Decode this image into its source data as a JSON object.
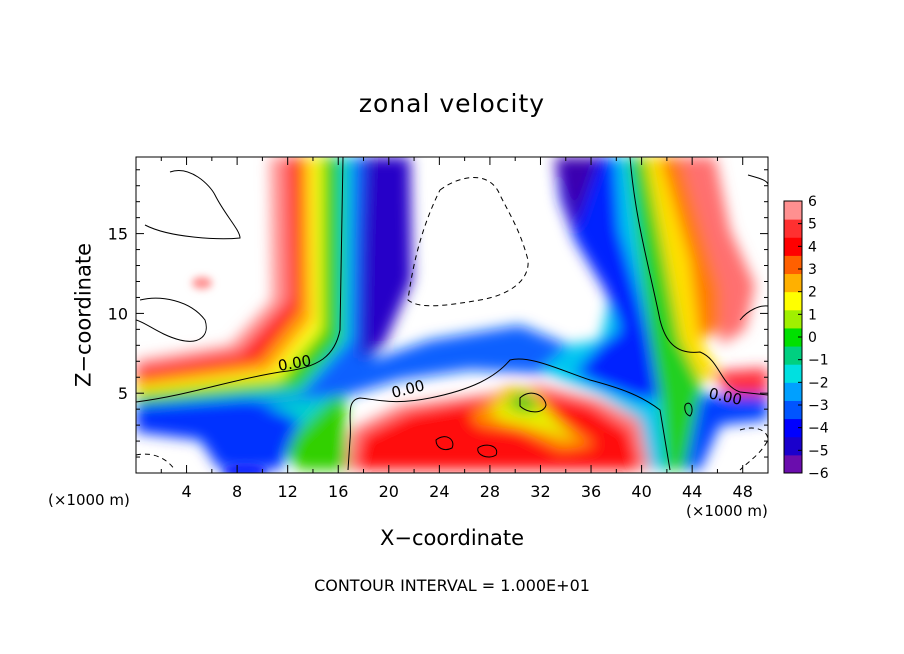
{
  "chart_data": {
    "type": "heatmap",
    "title": "zonal velocity",
    "xlabel": "X−coordinate",
    "ylabel": "Z−coordinate",
    "x_unit_label": "(×1000 m)",
    "xlim": [
      0,
      50
    ],
    "ylim": [
      0,
      19.8
    ],
    "x_ticks": [
      4,
      8,
      12,
      16,
      20,
      24,
      28,
      32,
      36,
      40,
      44,
      48
    ],
    "x_tick_labels": [
      "4",
      "8",
      "12",
      "16",
      "20",
      "24",
      "28",
      "32",
      "36",
      "40",
      "44",
      "48"
    ],
    "y_ticks": [
      5,
      10,
      15
    ],
    "y_tick_labels": [
      "5",
      "10",
      "15"
    ],
    "colorbar": {
      "min": -6,
      "max": 6,
      "tick_labels": [
        "6",
        "5",
        "4",
        "3",
        "2",
        "1",
        "0",
        "−1",
        "−2",
        "−3",
        "−4",
        "−5",
        "−6"
      ],
      "colors": [
        "#6a0dad",
        "#1a00cc",
        "#0000ff",
        "#0055ff",
        "#00a0ff",
        "#00e0e0",
        "#00d080",
        "#00e000",
        "#a0f000",
        "#ffff00",
        "#ffb000",
        "#ff6000",
        "#ff0000",
        "#ff3030",
        "#ff9090"
      ]
    },
    "contour_labels": [
      "0.00",
      "0.00",
      "0.00"
    ],
    "footer": "CONTOUR INTERVAL = 1.000E+01",
    "features": [
      {
        "name": "positive upper-left jet",
        "x_range": [
          9,
          14
        ],
        "z_range": [
          6,
          19.8
        ],
        "value_range": [
          2,
          6
        ]
      },
      {
        "name": "negative central core",
        "x_range": [
          15,
          20
        ],
        "z_range": [
          5,
          19.8
        ],
        "value_range": [
          -6,
          -2
        ]
      },
      {
        "name": "positive low-level region",
        "x_range": [
          17,
          38
        ],
        "z_range": [
          0,
          5
        ],
        "value_range": [
          2,
          6
        ]
      },
      {
        "name": "negative right column",
        "x_range": [
          33,
          40
        ],
        "z_range": [
          8,
          19.8
        ],
        "value_range": [
          -6,
          -2
        ]
      },
      {
        "name": "positive right jet",
        "x_range": [
          41,
          46
        ],
        "z_range": [
          6,
          19.8
        ],
        "value_range": [
          2,
          6
        ]
      }
    ]
  }
}
